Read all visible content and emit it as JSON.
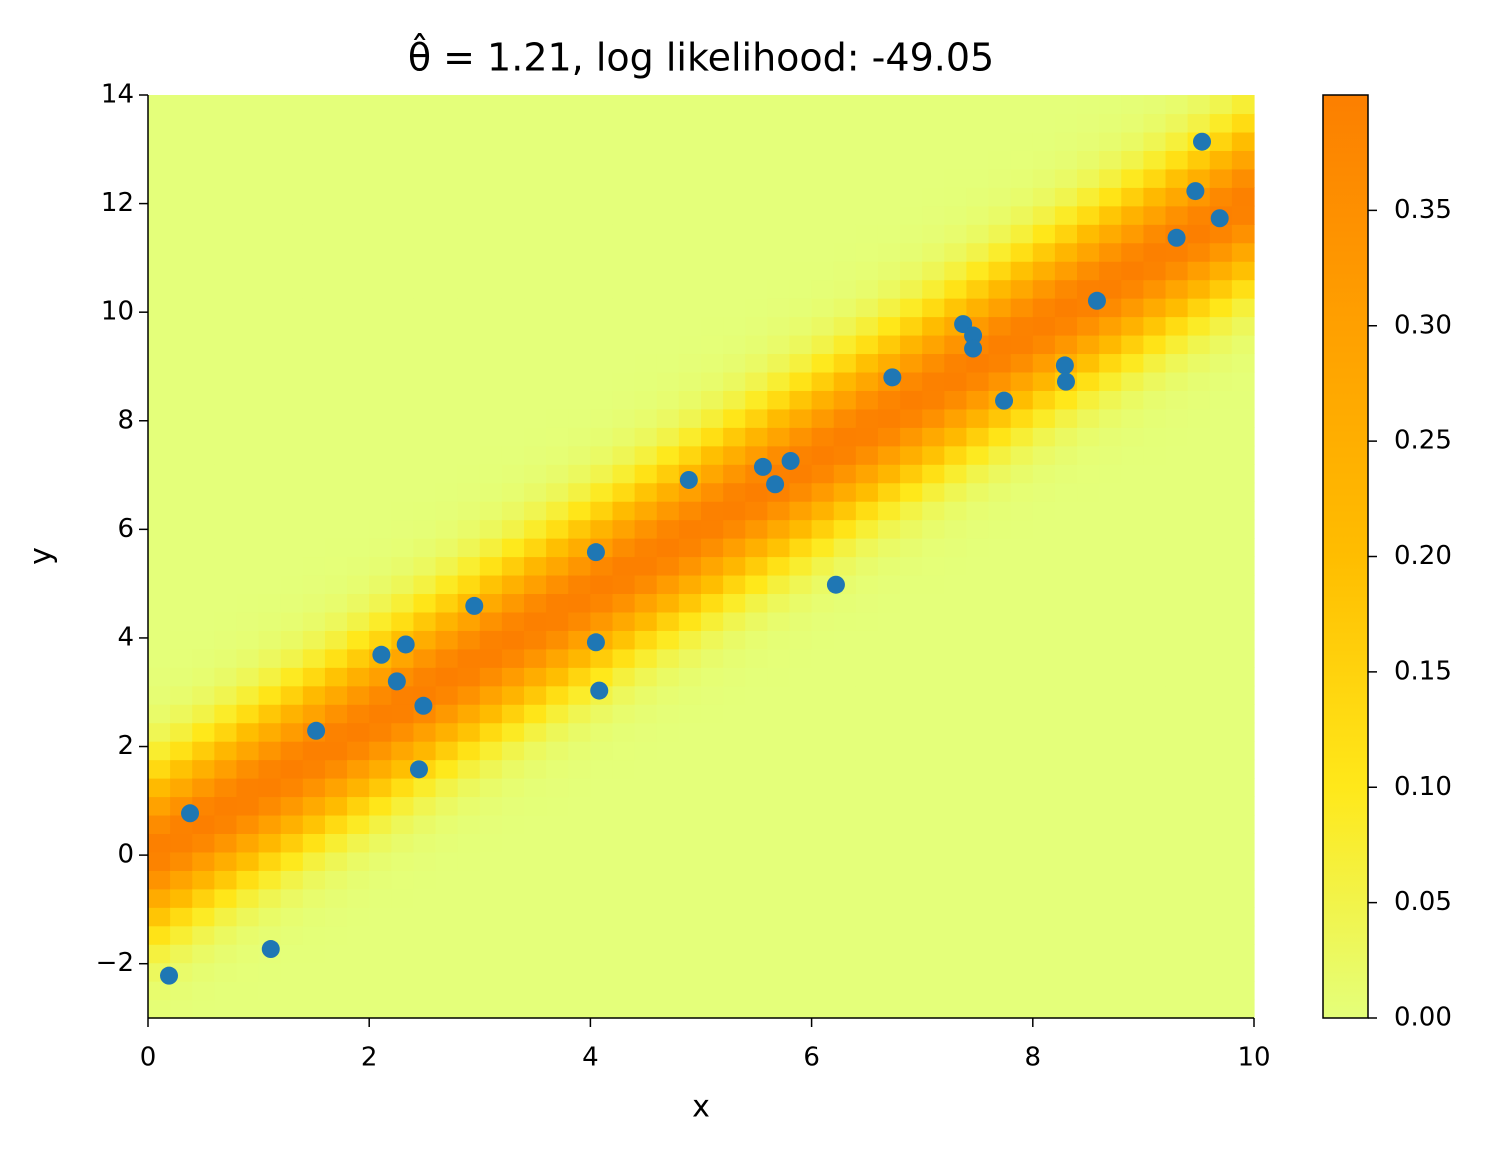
{
  "chart_data": {
    "type": "scatter",
    "title": "θ̂ = 1.21, log likelihood: -49.05",
    "xlabel": "x",
    "ylabel": "y",
    "xlim": [
      0,
      10
    ],
    "ylim": [
      -3,
      14
    ],
    "xticks": [
      0,
      2,
      4,
      6,
      8,
      10
    ],
    "yticks": [
      {
        "value": -2,
        "label": "−2"
      },
      0,
      2,
      4,
      6,
      8,
      10,
      12,
      14
    ],
    "color": "#1f77b4",
    "x": [
      0.19,
      0.38,
      1.11,
      1.52,
      2.11,
      2.25,
      2.33,
      2.45,
      2.49,
      2.95,
      4.05,
      4.05,
      4.08,
      4.89,
      5.56,
      5.67,
      5.81,
      6.22,
      6.73,
      7.37,
      7.46,
      7.46,
      7.74,
      8.29,
      8.3,
      8.58,
      9.3,
      9.47,
      9.53,
      9.69
    ],
    "values": [
      -2.22,
      0.77,
      -1.73,
      2.29,
      3.69,
      3.2,
      3.88,
      1.58,
      2.75,
      4.59,
      5.58,
      3.92,
      3.03,
      6.91,
      7.15,
      6.83,
      7.26,
      4.98,
      8.8,
      9.78,
      9.57,
      9.33,
      8.37,
      9.02,
      8.72,
      10.21,
      11.37,
      12.23,
      13.14,
      11.73
    ],
    "heatmap": {
      "slope": 1.21,
      "sigma": 1
    },
    "colormap": [
      "#e4ff7a",
      "#ffe81a",
      "#ffbd00",
      "#ffa000",
      "#fc7f00"
    ],
    "clim": [
      0,
      0.4
    ],
    "cticks": [
      {
        "value": 0,
        "label": "0.00"
      },
      {
        "value": 0.05,
        "label": "0.05"
      },
      {
        "value": 0.1,
        "label": "0.10"
      },
      {
        "value": 0.15,
        "label": "0.15"
      },
      {
        "value": 0.2,
        "label": "0.20"
      },
      {
        "value": 0.25,
        "label": "0.25"
      },
      {
        "value": 0.3,
        "label": "0.30"
      },
      {
        "value": 0.35,
        "label": "0.35"
      }
    ]
  }
}
